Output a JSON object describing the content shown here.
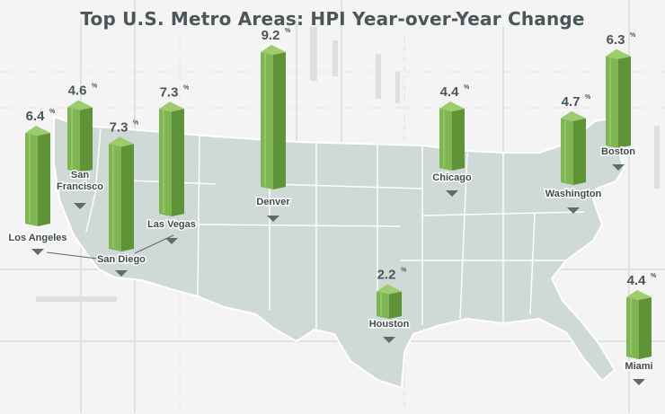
{
  "chart_data": {
    "type": "bar",
    "title": "Top U.S. Metro Areas: HPI Year-over-Year Change",
    "unit": "%",
    "categories": [
      "Los Angeles",
      "San Francisco",
      "San Diego",
      "Las Vegas",
      "Denver",
      "Houston",
      "Chicago",
      "Washington",
      "Boston",
      "Miami"
    ],
    "values": [
      6.4,
      4.6,
      7.3,
      7.3,
      9.2,
      2.2,
      4.4,
      4.7,
      6.3,
      4.4
    ],
    "value_labels": [
      "6.4",
      "4.6",
      "7.3",
      "7.3",
      "9.2",
      "2.2",
      "4.4",
      "4.7",
      "6.3",
      "4.4"
    ],
    "bar_color": "#74a84a",
    "map_color": "#cfd9d6"
  }
}
